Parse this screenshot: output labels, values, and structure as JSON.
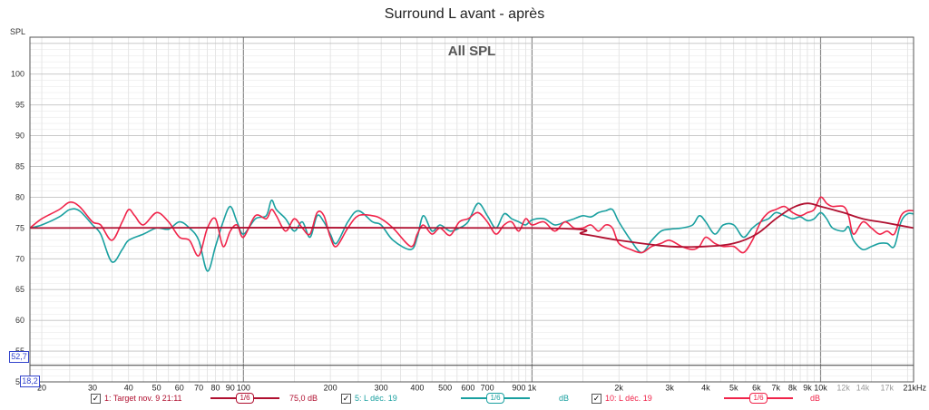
{
  "title": "Surround L avant - après",
  "y_axis_label": "SPL",
  "plot_label": "All SPL",
  "y_marker": "52,7",
  "x_marker": "18,2",
  "colors": {
    "target": "#b01030",
    "before": "#1aa0a0",
    "after": "#f0244a",
    "grid": "#d4d4d4",
    "major_grid": "#8a8a8a"
  },
  "legend": [
    {
      "name": "1: Target nov. 9 21:11",
      "smoothing": "1/6",
      "value": "75,0 dB",
      "checked": "✓",
      "color": "#b01030"
    },
    {
      "name": "5: L déc. 19",
      "smoothing": "1/6",
      "value": "dB",
      "checked": "✓",
      "color": "#1aa0a0"
    },
    {
      "name": "10: L déc. 19",
      "smoothing": "1/6",
      "value": "dB",
      "checked": "✓",
      "color": "#f0244a"
    }
  ],
  "chart_data": {
    "type": "line",
    "title": "Surround L avant - après",
    "ylabel": "SPL",
    "annotation": "All SPL",
    "x_scale": "log",
    "xlim": [
      18.2,
      21000
    ],
    "ylim": [
      50,
      106
    ],
    "grid": true,
    "x_ticks": [
      "20",
      "30",
      "40",
      "50",
      "60",
      "70",
      "80",
      "90",
      "100",
      "200",
      "300",
      "400",
      "500",
      "600",
      "700",
      "900",
      "1k",
      "2k",
      "3k",
      "4k",
      "5k",
      "6k",
      "7k",
      "8k",
      "9k",
      "10k",
      "12k",
      "14k",
      "17k",
      "21kHz"
    ],
    "y_ticks": [
      "50",
      "55",
      "60",
      "65",
      "70",
      "75",
      "80",
      "85",
      "90",
      "95",
      "100"
    ],
    "series": [
      {
        "name": "1: Target nov. 9 21:11",
        "color": "#b01030",
        "points": [
          [
            18.2,
            75
          ],
          [
            1000,
            75
          ],
          [
            1500,
            74
          ],
          [
            2000,
            73
          ],
          [
            3000,
            72
          ],
          [
            4000,
            72
          ],
          [
            5000,
            72.5
          ],
          [
            6000,
            74
          ],
          [
            7000,
            76.5
          ],
          [
            8000,
            78.3
          ],
          [
            9000,
            79
          ],
          [
            10000,
            78.5
          ],
          [
            12000,
            77.5
          ],
          [
            14000,
            76.5
          ],
          [
            17000,
            75.8
          ],
          [
            21000,
            75
          ]
        ]
      },
      {
        "name": "5: L déc. 19",
        "color": "#1aa0a0",
        "points": [
          [
            18.2,
            75
          ],
          [
            20,
            75.5
          ],
          [
            23,
            76.8
          ],
          [
            25,
            78
          ],
          [
            27,
            77.8
          ],
          [
            30,
            75.5
          ],
          [
            32,
            74
          ],
          [
            35,
            69.5
          ],
          [
            38,
            71.5
          ],
          [
            40,
            73
          ],
          [
            45,
            74
          ],
          [
            50,
            75
          ],
          [
            55,
            74.8
          ],
          [
            60,
            76
          ],
          [
            65,
            75
          ],
          [
            70,
            73
          ],
          [
            75,
            68
          ],
          [
            80,
            72
          ],
          [
            85,
            76
          ],
          [
            90,
            78.5
          ],
          [
            95,
            76
          ],
          [
            100,
            74
          ],
          [
            110,
            76.5
          ],
          [
            120,
            77
          ],
          [
            125,
            79.5
          ],
          [
            130,
            78
          ],
          [
            140,
            76.5
          ],
          [
            150,
            74.5
          ],
          [
            160,
            76
          ],
          [
            170,
            73.5
          ],
          [
            180,
            77
          ],
          [
            190,
            76
          ],
          [
            200,
            74
          ],
          [
            210,
            72.5
          ],
          [
            230,
            76
          ],
          [
            250,
            77.8
          ],
          [
            280,
            76
          ],
          [
            300,
            75.5
          ],
          [
            330,
            73
          ],
          [
            380,
            71.5
          ],
          [
            400,
            73.5
          ],
          [
            420,
            77
          ],
          [
            450,
            74.5
          ],
          [
            480,
            75.5
          ],
          [
            520,
            74.5
          ],
          [
            560,
            75
          ],
          [
            600,
            76
          ],
          [
            650,
            79
          ],
          [
            700,
            77
          ],
          [
            750,
            75
          ],
          [
            800,
            77.3
          ],
          [
            850,
            76.5
          ],
          [
            900,
            76
          ],
          [
            950,
            75.5
          ],
          [
            1000,
            76.3
          ],
          [
            1100,
            76.5
          ],
          [
            1200,
            75.5
          ],
          [
            1300,
            76
          ],
          [
            1400,
            76.5
          ],
          [
            1500,
            77
          ],
          [
            1600,
            76.8
          ],
          [
            1700,
            77.5
          ],
          [
            1800,
            77.8
          ],
          [
            1900,
            78
          ],
          [
            2000,
            76
          ],
          [
            2200,
            73
          ],
          [
            2400,
            71
          ],
          [
            2600,
            73
          ],
          [
            2800,
            74.5
          ],
          [
            3000,
            74.8
          ],
          [
            3300,
            75
          ],
          [
            3600,
            75.5
          ],
          [
            3800,
            77
          ],
          [
            4000,
            76
          ],
          [
            4300,
            74
          ],
          [
            4600,
            75.5
          ],
          [
            5000,
            75.5
          ],
          [
            5400,
            73.5
          ],
          [
            5800,
            75
          ],
          [
            6200,
            76
          ],
          [
            6600,
            76.5
          ],
          [
            7000,
            77.5
          ],
          [
            7500,
            77
          ],
          [
            8000,
            76.5
          ],
          [
            8500,
            76.8
          ],
          [
            9000,
            76.2
          ],
          [
            9500,
            76.5
          ],
          [
            10000,
            77.5
          ],
          [
            10500,
            76.5
          ],
          [
            11000,
            75
          ],
          [
            12000,
            74.5
          ],
          [
            12500,
            75.2
          ],
          [
            13000,
            73
          ],
          [
            14000,
            71.5
          ],
          [
            15000,
            72
          ],
          [
            16000,
            72.5
          ],
          [
            17000,
            72.5
          ],
          [
            18000,
            72
          ],
          [
            19000,
            76
          ],
          [
            20000,
            77.3
          ],
          [
            21000,
            77.3
          ]
        ]
      },
      {
        "name": "10: L déc. 19",
        "color": "#f0244a",
        "points": [
          [
            18.2,
            75
          ],
          [
            20,
            76.5
          ],
          [
            23,
            78
          ],
          [
            25,
            79.2
          ],
          [
            27,
            78.5
          ],
          [
            30,
            76
          ],
          [
            32,
            75.5
          ],
          [
            35,
            73
          ],
          [
            38,
            76
          ],
          [
            40,
            78
          ],
          [
            42,
            77
          ],
          [
            45,
            75.5
          ],
          [
            50,
            77.5
          ],
          [
            55,
            76
          ],
          [
            60,
            73.5
          ],
          [
            65,
            73
          ],
          [
            70,
            70.5
          ],
          [
            75,
            75
          ],
          [
            80,
            76.5
          ],
          [
            85,
            72
          ],
          [
            90,
            74.5
          ],
          [
            95,
            75.5
          ],
          [
            100,
            73.5
          ],
          [
            110,
            77
          ],
          [
            120,
            76.5
          ],
          [
            125,
            78
          ],
          [
            130,
            77
          ],
          [
            140,
            74.5
          ],
          [
            150,
            76.5
          ],
          [
            160,
            75
          ],
          [
            170,
            74
          ],
          [
            180,
            77.5
          ],
          [
            190,
            77
          ],
          [
            200,
            73.5
          ],
          [
            210,
            72
          ],
          [
            230,
            75
          ],
          [
            250,
            77
          ],
          [
            280,
            77
          ],
          [
            300,
            76.5
          ],
          [
            330,
            75
          ],
          [
            380,
            72
          ],
          [
            400,
            74
          ],
          [
            420,
            75.5
          ],
          [
            450,
            74
          ],
          [
            480,
            75
          ],
          [
            520,
            73.8
          ],
          [
            560,
            76
          ],
          [
            600,
            76.5
          ],
          [
            650,
            77.5
          ],
          [
            700,
            76
          ],
          [
            750,
            74
          ],
          [
            800,
            75.5
          ],
          [
            850,
            76
          ],
          [
            900,
            74.5
          ],
          [
            950,
            76.5
          ],
          [
            1000,
            75.5
          ],
          [
            1100,
            76
          ],
          [
            1200,
            74.5
          ],
          [
            1300,
            76
          ],
          [
            1400,
            75
          ],
          [
            1500,
            75
          ],
          [
            1600,
            75.5
          ],
          [
            1700,
            74.5
          ],
          [
            1800,
            75.5
          ],
          [
            1900,
            75
          ],
          [
            2000,
            72.5
          ],
          [
            2200,
            71.5
          ],
          [
            2400,
            71
          ],
          [
            2600,
            72
          ],
          [
            2800,
            72.5
          ],
          [
            3000,
            73
          ],
          [
            3300,
            72
          ],
          [
            3600,
            71.5
          ],
          [
            3800,
            72
          ],
          [
            4000,
            73.5
          ],
          [
            4300,
            72.5
          ],
          [
            4600,
            72
          ],
          [
            5000,
            72
          ],
          [
            5400,
            71
          ],
          [
            5800,
            73
          ],
          [
            6200,
            76
          ],
          [
            6600,
            77.5
          ],
          [
            7000,
            78
          ],
          [
            7500,
            78.5
          ],
          [
            8000,
            77.5
          ],
          [
            8500,
            77
          ],
          [
            9000,
            77.5
          ],
          [
            9500,
            78
          ],
          [
            10000,
            80
          ],
          [
            10500,
            79
          ],
          [
            11000,
            78.5
          ],
          [
            12000,
            78.5
          ],
          [
            12500,
            77
          ],
          [
            13000,
            74
          ],
          [
            14000,
            76
          ],
          [
            15000,
            75
          ],
          [
            16000,
            74
          ],
          [
            17000,
            74.5
          ],
          [
            18000,
            74
          ],
          [
            19000,
            77
          ],
          [
            20000,
            77.8
          ],
          [
            21000,
            77.8
          ]
        ]
      }
    ]
  }
}
